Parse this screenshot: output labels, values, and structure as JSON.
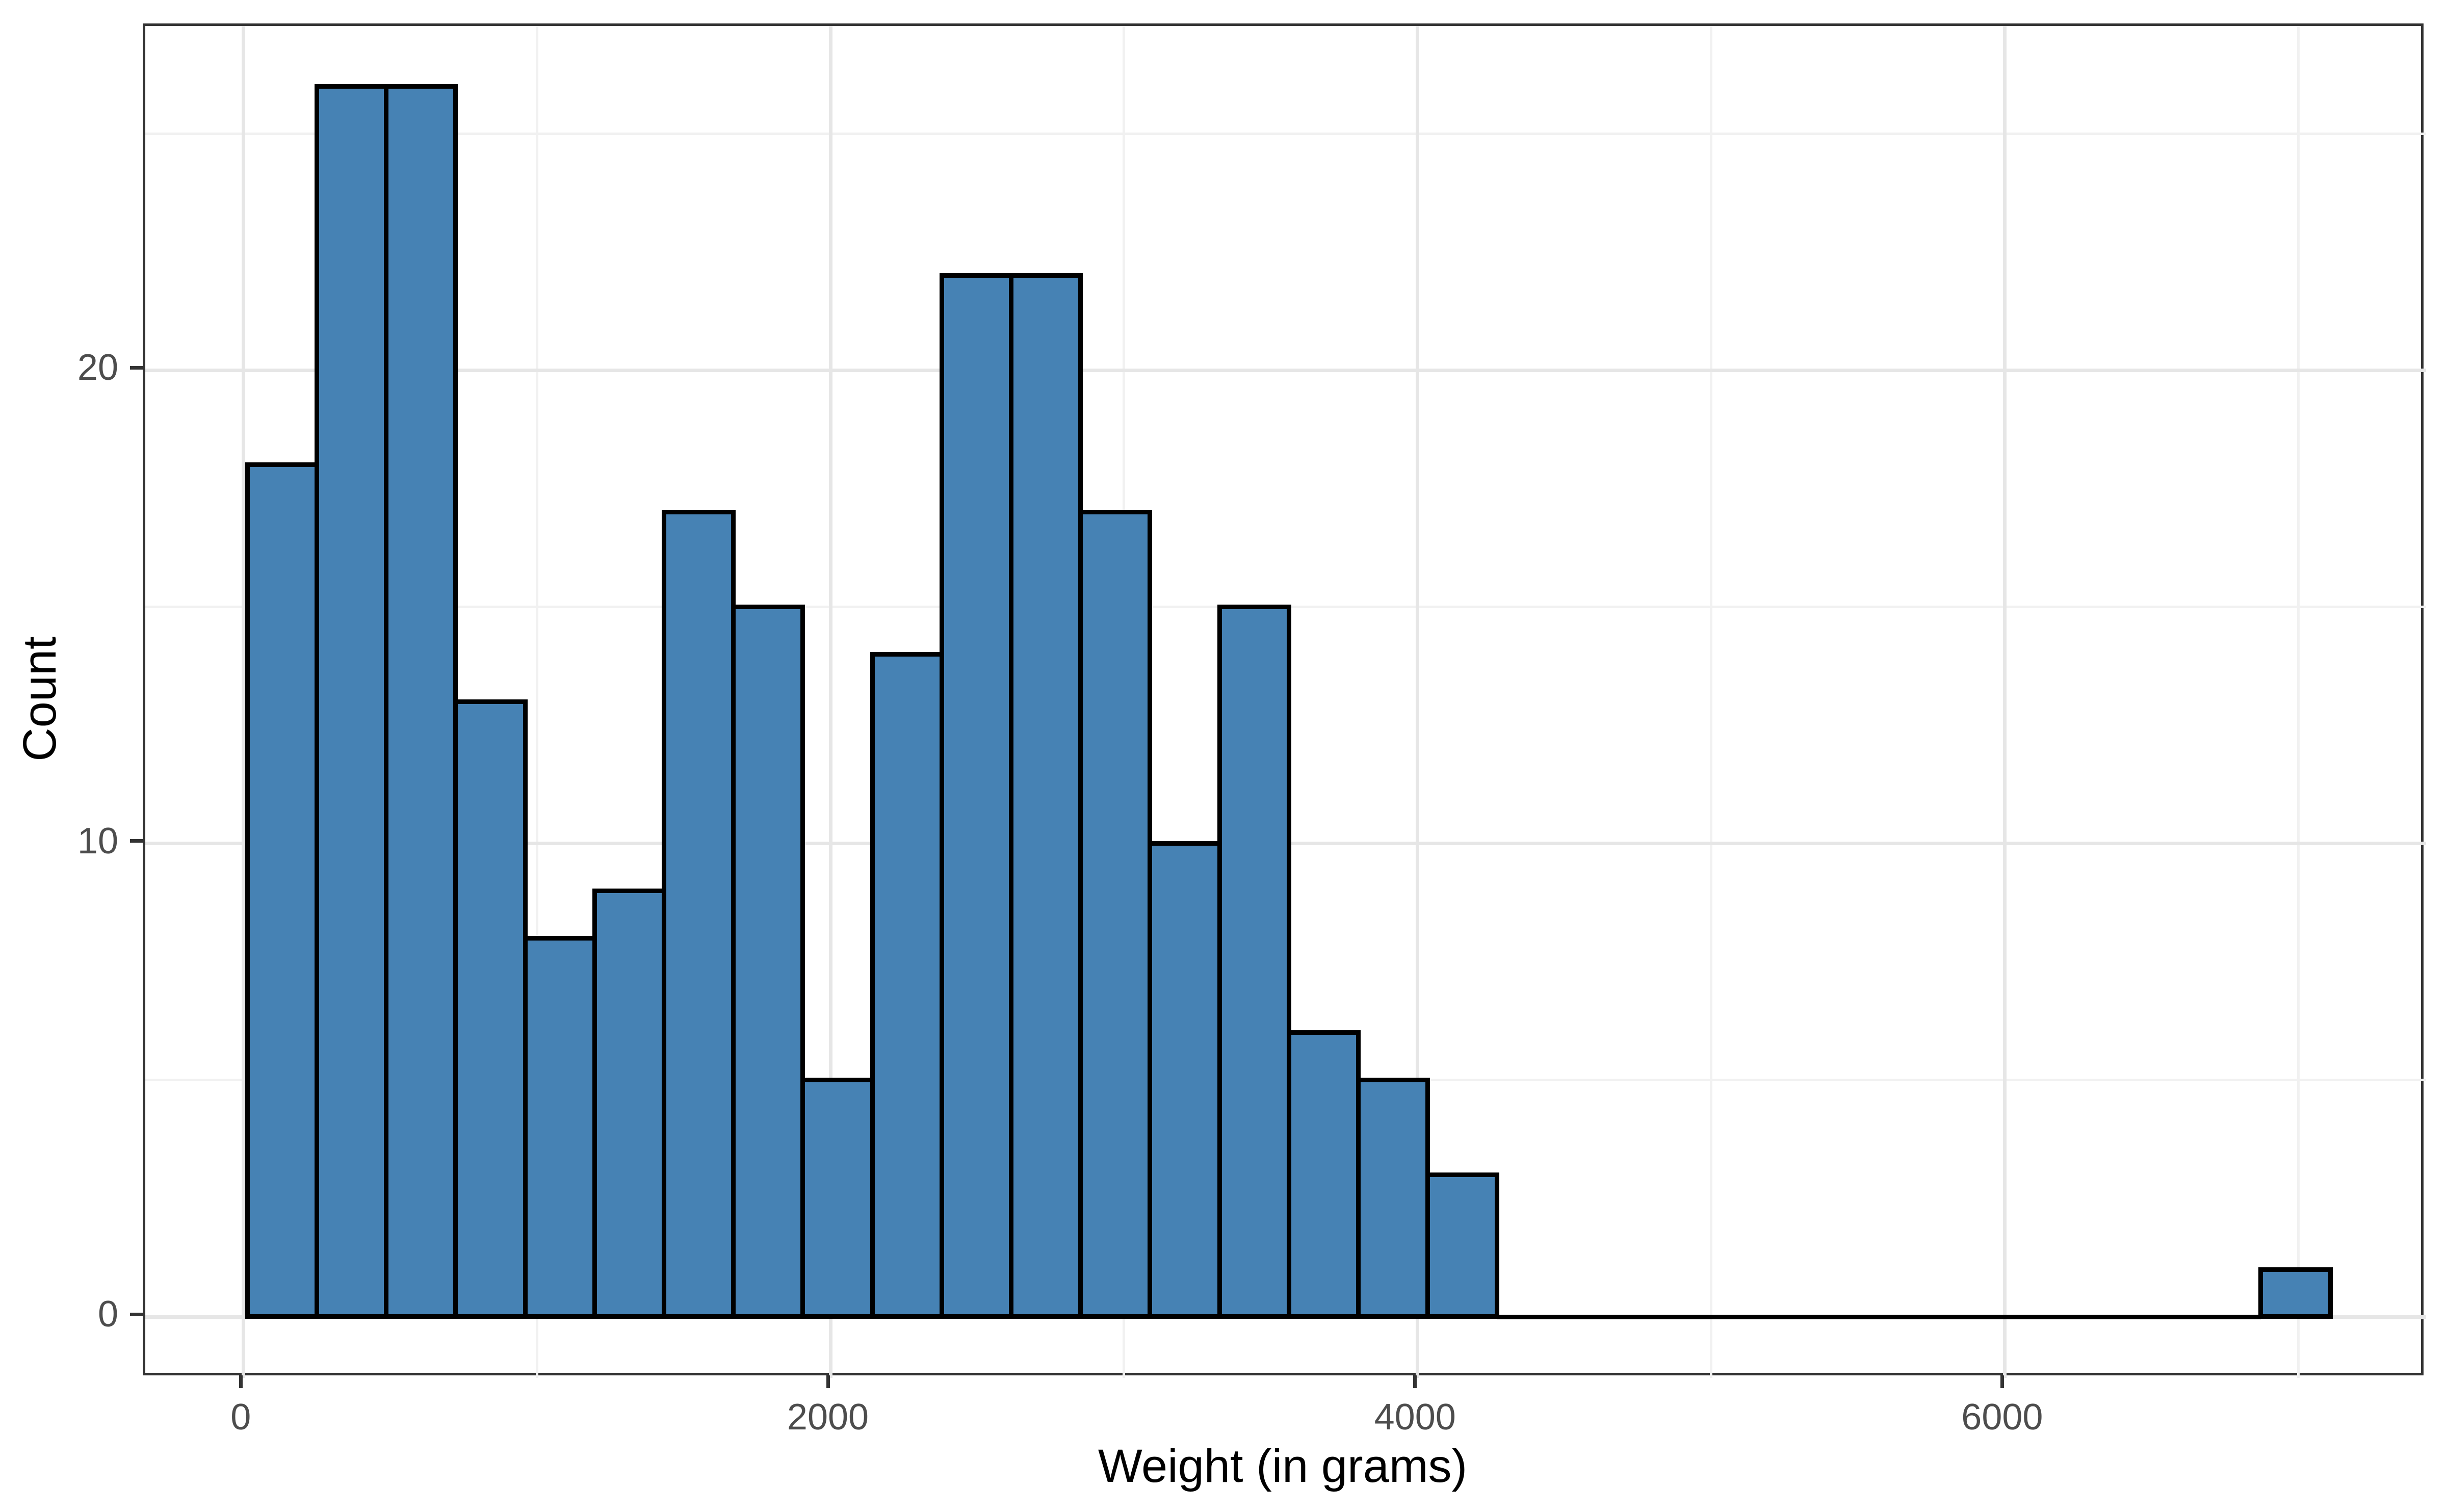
{
  "chart_data": {
    "type": "bar",
    "subtype": "histogram",
    "title": "",
    "xlabel": "Weight (in grams)",
    "ylabel": "Count",
    "bins": {
      "start": 14,
      "width": 236.5,
      "n_bins": 30
    },
    "counts": [
      18,
      26,
      26,
      13,
      8,
      9,
      17,
      15,
      5,
      14,
      22,
      22,
      17,
      10,
      15,
      6,
      5,
      3,
      0,
      0,
      0,
      0,
      0,
      0,
      0,
      0,
      0,
      0,
      0,
      1
    ],
    "total_observations": 252,
    "x_ticks": [
      0,
      2000,
      4000,
      6000
    ],
    "x_tick_labels": [
      "0",
      "2000",
      "4000",
      "6000"
    ],
    "y_ticks": [
      0,
      10,
      20
    ],
    "y_tick_labels": [
      "0",
      "10",
      "20"
    ],
    "x_minor_ticks": [
      1000,
      3000,
      5000,
      7000
    ],
    "y_minor_ticks": [
      5,
      15,
      25
    ],
    "xlim": [
      -341,
      7464
    ],
    "ylim": [
      -1.3,
      27.3
    ],
    "grid": true,
    "legend_position": "none",
    "colors": {
      "bar_fill": "#4682B4",
      "bar_stroke": "#000000",
      "grid_major": "#e6e6e6",
      "grid_minor": "#f1f1f1",
      "panel_border": "#333333",
      "tick_mark": "#333333",
      "tick_label": "#4d4d4d",
      "axis_title": "#000000",
      "background": "#ffffff"
    }
  }
}
